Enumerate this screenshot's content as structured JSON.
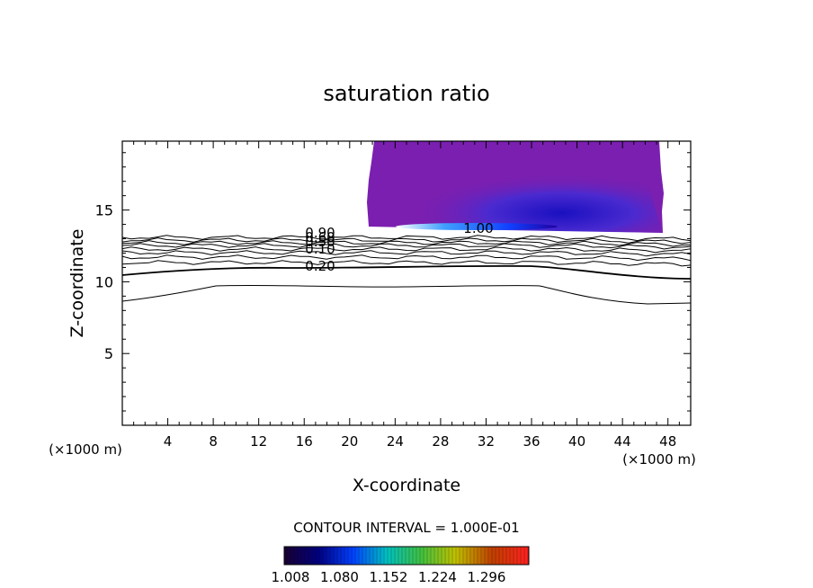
{
  "chart_data": {
    "type": "contour",
    "title": "saturation ratio",
    "xlabel": "X-coordinate",
    "ylabel": "Z-coordinate",
    "x_unit": "(×1000 m)",
    "xlim": [
      0,
      50
    ],
    "ylim": [
      0,
      19.8
    ],
    "x_ticks": [
      4,
      8,
      12,
      16,
      20,
      24,
      28,
      32,
      36,
      40,
      44,
      48
    ],
    "y_ticks": [
      5,
      10,
      15
    ],
    "contour_interval_label": "CONTOUR INTERVAL = 1.000E-01",
    "contour_labels": [
      "0.90",
      "0.60",
      "0.50",
      "0.10",
      "0.20",
      "1.00"
    ],
    "colorbar_ticks": [
      "1.008",
      "1.080",
      "1.152",
      "1.224",
      "1.296"
    ],
    "colorbar_colors": [
      "#1a0033",
      "#000080",
      "#0040ff",
      "#00c0c0",
      "#40c040",
      "#c0c000",
      "#c04000",
      "#ff2020"
    ],
    "fill_color": "#7a1fb0"
  }
}
